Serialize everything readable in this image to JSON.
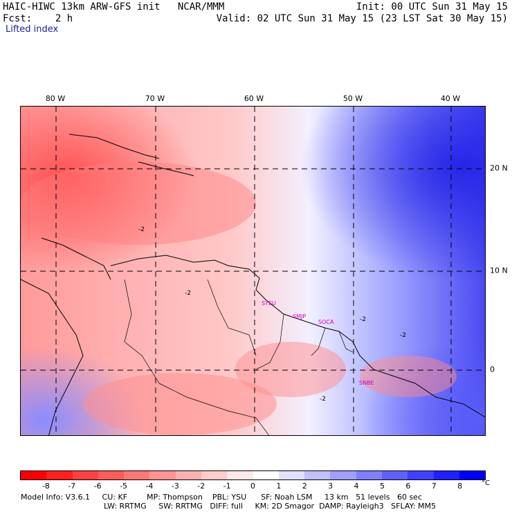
{
  "header": {
    "model": "HAIC-HIWC 13km ARW-GFS init   NCAR/MMM",
    "fcst": "Fcst:    2 h",
    "field": "Lifted index",
    "init": "Init: 00 UTC Sun 31 May 15",
    "valid": "Valid: 02 UTC Sun 31 May 15 (23 LST Sat 30 May 15)"
  },
  "map": {
    "lon_labels": [
      "80 W",
      "70 W",
      "60 W",
      "50 W",
      "40 W"
    ],
    "lat_labels": [
      "20 N",
      "10 N",
      "0"
    ],
    "stations": [
      "SYEU",
      "SMJP",
      "SOCA",
      "SNBE"
    ],
    "contour_label": "-2"
  },
  "colorbar": {
    "labels": [
      "-8",
      "-7",
      "-6",
      "-5",
      "-4",
      "-3",
      "-2",
      "-1",
      "0",
      "1",
      "2",
      "3",
      "4",
      "5",
      "6",
      "7",
      "8"
    ],
    "unit": "°C",
    "colors": [
      "#ff0000",
      "#ff2020",
      "#ff4040",
      "#ff5c5c",
      "#ff7878",
      "#ff9494",
      "#ffb0b0",
      "#ffcccc",
      "#ffe8e8",
      "#ffffff",
      "#e0e0ff",
      "#c0c0ff",
      "#a0a0ff",
      "#8080ff",
      "#6060ff",
      "#4040ff",
      "#2020ff",
      "#0000ff"
    ]
  },
  "footer": {
    "line1": "Model Info: V3.6.1     CU: KF        MP: Thompson    PBL: YSU      SF: Noah LSM     13 km   51 levels   60 sec",
    "line2": "LW: RRTMG     SW: RRTMG   DIFF: full     KM: 2D Smagor  DAMP: Rayleigh3   SFLAY: MM5"
  }
}
